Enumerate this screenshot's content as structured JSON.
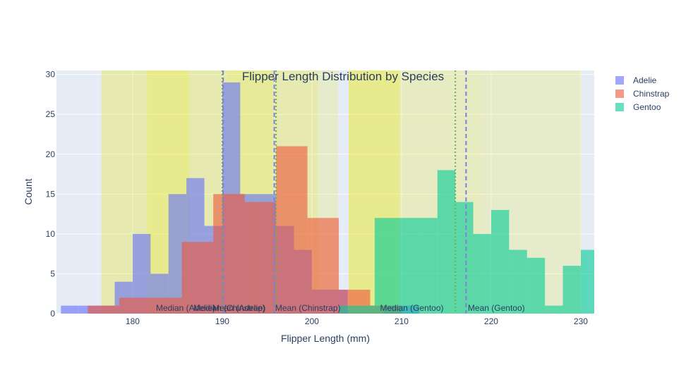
{
  "chart_data": {
    "type": "bar",
    "title": "Flipper Length Distribution by Species",
    "xlabel": "Flipper Length (mm)",
    "ylabel": "Count",
    "xlim": [
      171.5,
      231.5
    ],
    "ylim": [
      0,
      30.5
    ],
    "xticks": [
      180,
      190,
      200,
      210,
      220,
      230
    ],
    "yticks": [
      0,
      5,
      10,
      15,
      20,
      25,
      30
    ],
    "barmode": "overlay",
    "grid": true,
    "legend_position": "top-right",
    "series": [
      {
        "name": "Adelie",
        "color": "#636efa",
        "opacity": 0.6,
        "bins": [
          {
            "x0": 172,
            "x1": 174,
            "y": 1
          },
          {
            "x0": 174,
            "x1": 176,
            "y": 1
          },
          {
            "x0": 176,
            "x1": 178,
            "y": 1
          },
          {
            "x0": 178,
            "x1": 180,
            "y": 4
          },
          {
            "x0": 180,
            "x1": 182,
            "y": 10
          },
          {
            "x0": 182,
            "x1": 184,
            "y": 5
          },
          {
            "x0": 184,
            "x1": 186,
            "y": 15
          },
          {
            "x0": 186,
            "x1": 188,
            "y": 17
          },
          {
            "x0": 188,
            "x1": 190,
            "y": 11
          },
          {
            "x0": 190,
            "x1": 192,
            "y": 29
          },
          {
            "x0": 192,
            "x1": 194,
            "y": 15
          },
          {
            "x0": 194,
            "x1": 196,
            "y": 15
          },
          {
            "x0": 196,
            "x1": 198,
            "y": 11
          },
          {
            "x0": 198,
            "x1": 200,
            "y": 8
          },
          {
            "x0": 200,
            "x1": 202,
            "y": 3
          },
          {
            "x0": 202,
            "x1": 204,
            "y": 3
          },
          {
            "x0": 208,
            "x1": 210,
            "y": 1
          },
          {
            "x0": 210,
            "x1": 212,
            "y": 1
          }
        ]
      },
      {
        "name": "Chinstrap",
        "color": "#ef553b",
        "opacity": 0.6,
        "bins": [
          {
            "x0": 175,
            "x1": 178.5,
            "y": 1
          },
          {
            "x0": 178.5,
            "x1": 182,
            "y": 2
          },
          {
            "x0": 182,
            "x1": 185.5,
            "y": 2
          },
          {
            "x0": 185.5,
            "x1": 189,
            "y": 9
          },
          {
            "x0": 189,
            "x1": 192.5,
            "y": 15
          },
          {
            "x0": 192.5,
            "x1": 196,
            "y": 14
          },
          {
            "x0": 196,
            "x1": 199.5,
            "y": 21
          },
          {
            "x0": 199.5,
            "x1": 203,
            "y": 12
          },
          {
            "x0": 203,
            "x1": 206.5,
            "y": 3
          },
          {
            "x0": 206.5,
            "x1": 210,
            "y": 1
          }
        ]
      },
      {
        "name": "Gentoo",
        "color": "#00cc96",
        "opacity": 0.6,
        "bins": [
          {
            "x0": 203,
            "x1": 205,
            "y": 1
          },
          {
            "x0": 205,
            "x1": 207,
            "y": 1
          },
          {
            "x0": 207,
            "x1": 209.5,
            "y": 12
          },
          {
            "x0": 209.5,
            "x1": 212,
            "y": 12
          },
          {
            "x0": 212,
            "x1": 214,
            "y": 12
          },
          {
            "x0": 214,
            "x1": 216,
            "y": 18
          },
          {
            "x0": 216,
            "x1": 218,
            "y": 14
          },
          {
            "x0": 218,
            "x1": 220,
            "y": 10
          },
          {
            "x0": 220,
            "x1": 222,
            "y": 13
          },
          {
            "x0": 222,
            "x1": 224,
            "y": 8
          },
          {
            "x0": 224,
            "x1": 226,
            "y": 7
          },
          {
            "x0": 226,
            "x1": 228,
            "y": 1
          },
          {
            "x0": 228,
            "x1": 230,
            "y": 6
          },
          {
            "x0": 230,
            "x1": 232,
            "y": 8
          }
        ]
      }
    ],
    "shaded_regions": [
      {
        "x0": 176.5,
        "x1": 181.6,
        "color": "#e9e94a",
        "opacity": 0.4
      },
      {
        "x0": 181.6,
        "x1": 186.3,
        "color": "#e9e94a",
        "opacity": 0.6
      },
      {
        "x0": 186.3,
        "x1": 190.5,
        "color": "#e9e94a",
        "opacity": 0.4
      },
      {
        "x0": 190.5,
        "x1": 195.6,
        "color": "#e9e94a",
        "opacity": 0.55
      },
      {
        "x0": 195.6,
        "x1": 200.7,
        "color": "#e9e94a",
        "opacity": 0.4
      },
      {
        "x0": 200.7,
        "x1": 202.9,
        "color": "#e9e94a",
        "opacity": 0.25
      },
      {
        "x0": 204.1,
        "x1": 209.8,
        "color": "#e9e94a",
        "opacity": 0.6
      },
      {
        "x0": 209.8,
        "x1": 219.0,
        "color": "#e9e94a",
        "opacity": 0.3
      },
      {
        "x0": 219.0,
        "x1": 230.1,
        "color": "#e9e94a",
        "opacity": 0.25
      }
    ],
    "reference_lines": [
      {
        "label": "Median (Adelie)",
        "x": 190,
        "color": "#6ab04c",
        "dash": "2,3",
        "ann_x": 182.6
      },
      {
        "label": "Median (Chinstrap)",
        "x": 196,
        "color": "#6ab04c",
        "dash": "2,3",
        "ann_x": 186.8
      },
      {
        "label": "Mean (Adelie)",
        "x": 190.1,
        "color": "#7f7fd5",
        "dash": "6,4",
        "ann_x": 188.9
      },
      {
        "label": "Mean (Chinstrap)",
        "x": 195.8,
        "color": "#7f7fd5",
        "dash": "6,4",
        "ann_x": 195.9
      },
      {
        "label": "Median (Gentoo)",
        "x": 216,
        "color": "#6ab04c",
        "dash": "2,3",
        "ann_x": 207.6
      },
      {
        "label": "Mean (Gentoo)",
        "x": 217.2,
        "color": "#7f7fd5",
        "dash": "6,4",
        "ann_x": 217.4
      }
    ]
  }
}
